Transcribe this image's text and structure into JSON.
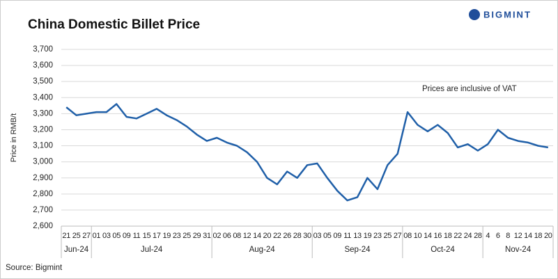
{
  "chart_data": {
    "type": "line",
    "title": "China Domestic Billet Price",
    "brand": "BIGMINT",
    "y_label": "Price in RMB/t",
    "annotation": "Prices are inclusive of VAT",
    "source": "Source: Bigmint",
    "categories": [
      "21",
      "25",
      "27",
      "01",
      "03",
      "05",
      "09",
      "11",
      "15",
      "17",
      "19",
      "23",
      "25",
      "29",
      "31",
      "02",
      "06",
      "08",
      "12",
      "14",
      "20",
      "22",
      "26",
      "28",
      "30",
      "03",
      "05",
      "09",
      "11",
      "13",
      "19",
      "23",
      "25",
      "27",
      "08",
      "10",
      "14",
      "16",
      "18",
      "22",
      "24",
      "28",
      "4",
      "6",
      "8",
      "12",
      "14",
      "18",
      "20"
    ],
    "month_groups": [
      {
        "label": "Jun-24",
        "count": 3
      },
      {
        "label": "Jul-24",
        "count": 12
      },
      {
        "label": "Aug-24",
        "count": 10
      },
      {
        "label": "Sep-24",
        "count": 9
      },
      {
        "label": "Oct-24",
        "count": 8
      },
      {
        "label": "Nov-24",
        "count": 7
      }
    ],
    "series": [
      {
        "name": "Billet price",
        "color": "#1f5fa8",
        "values": [
          3340,
          3290,
          3300,
          3310,
          3310,
          3360,
          3280,
          3270,
          3300,
          3330,
          3290,
          3260,
          3220,
          3170,
          3130,
          3150,
          3120,
          3100,
          3060,
          3000,
          2900,
          2860,
          2940,
          2900,
          2980,
          2990,
          2900,
          2820,
          2760,
          2780,
          2900,
          2830,
          2980,
          3050,
          3310,
          3230,
          3190,
          3230,
          3180,
          3090,
          3110,
          3070,
          3110,
          3200,
          3150,
          3130,
          3120,
          3100,
          3090
        ]
      }
    ],
    "ylim": [
      2600,
      3700
    ],
    "yticks": [
      {
        "value": 2600,
        "label": "2,600"
      },
      {
        "value": 2700,
        "label": "2,700"
      },
      {
        "value": 2800,
        "label": "2,800"
      },
      {
        "value": 2900,
        "label": "2,900"
      },
      {
        "value": 3000,
        "label": "3,000"
      },
      {
        "value": 3100,
        "label": "3,100"
      },
      {
        "value": 3200,
        "label": "3,200"
      },
      {
        "value": 3300,
        "label": "3,300"
      },
      {
        "value": 3400,
        "label": "3,400"
      },
      {
        "value": 3500,
        "label": "3,500"
      },
      {
        "value": 3600,
        "label": "3,600"
      },
      {
        "value": 3700,
        "label": "3,700"
      }
    ],
    "grid": true
  }
}
